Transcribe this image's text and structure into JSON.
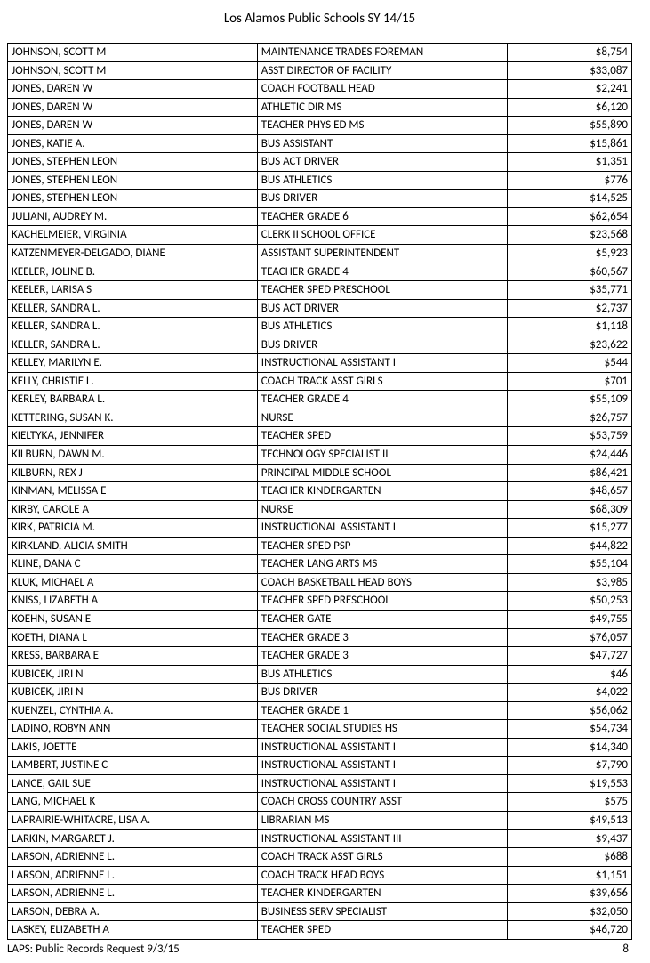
{
  "document": {
    "title": "Los Alamos Public Schools SY 14/15",
    "footer_left": "LAPS: Public Records Request 9/3/15",
    "page_number": "8"
  },
  "table": {
    "columns": [
      "name",
      "position",
      "salary"
    ],
    "col_widths_pct": [
      40,
      40,
      20
    ],
    "col_align": [
      "left",
      "left",
      "right"
    ],
    "border_color": "#000000",
    "text_color": "#000000",
    "font_size_pt": 10,
    "rows": [
      [
        "JOHNSON, SCOTT M",
        "MAINTENANCE TRADES FOREMAN",
        "$8,754"
      ],
      [
        "JOHNSON, SCOTT M",
        "ASST DIRECTOR OF FACILITY",
        "$33,087"
      ],
      [
        "JONES, DAREN W",
        "COACH FOOTBALL HEAD",
        "$2,241"
      ],
      [
        "JONES, DAREN W",
        "ATHLETIC DIR MS",
        "$6,120"
      ],
      [
        "JONES, DAREN W",
        "TEACHER PHYS ED MS",
        "$55,890"
      ],
      [
        "JONES, KATIE A.",
        "BUS ASSISTANT",
        "$15,861"
      ],
      [
        "JONES, STEPHEN LEON",
        "BUS ACT DRIVER",
        "$1,351"
      ],
      [
        "JONES, STEPHEN LEON",
        "BUS ATHLETICS",
        "$776"
      ],
      [
        "JONES, STEPHEN LEON",
        "BUS DRIVER",
        "$14,525"
      ],
      [
        "JULIANI, AUDREY M.",
        "TEACHER GRADE 6",
        "$62,654"
      ],
      [
        "KACHELMEIER, VIRGINIA",
        "CLERK II SCHOOL OFFICE",
        "$23,568"
      ],
      [
        "KATZENMEYER-DELGADO, DIANE",
        "ASSISTANT SUPERINTENDENT",
        "$5,923"
      ],
      [
        "KEELER, JOLINE B.",
        "TEACHER GRADE 4",
        "$60,567"
      ],
      [
        "KEELER, LARISA S",
        "TEACHER SPED PRESCHOOL",
        "$35,771"
      ],
      [
        "KELLER, SANDRA L.",
        "BUS ACT DRIVER",
        "$2,737"
      ],
      [
        "KELLER, SANDRA L.",
        "BUS ATHLETICS",
        "$1,118"
      ],
      [
        "KELLER, SANDRA L.",
        "BUS DRIVER",
        "$23,622"
      ],
      [
        "KELLEY, MARILYN E.",
        "INSTRUCTIONAL ASSISTANT I",
        "$544"
      ],
      [
        "KELLY, CHRISTIE L.",
        "COACH TRACK ASST GIRLS",
        "$701"
      ],
      [
        "KERLEY, BARBARA L.",
        "TEACHER GRADE 4",
        "$55,109"
      ],
      [
        "KETTERING, SUSAN K.",
        "NURSE",
        "$26,757"
      ],
      [
        "KIELTYKA, JENNIFER",
        "TEACHER SPED",
        "$53,759"
      ],
      [
        "KILBURN, DAWN M.",
        "TECHNOLOGY SPECIALIST II",
        "$24,446"
      ],
      [
        "KILBURN, REX J",
        "PRINCIPAL MIDDLE SCHOOL",
        "$86,421"
      ],
      [
        "KINMAN, MELISSA E",
        "TEACHER KINDERGARTEN",
        "$48,657"
      ],
      [
        "KIRBY, CAROLE A",
        "NURSE",
        "$68,309"
      ],
      [
        "KIRK, PATRICIA M.",
        "INSTRUCTIONAL ASSISTANT I",
        "$15,277"
      ],
      [
        "KIRKLAND, ALICIA SMITH",
        "TEACHER SPED PSP",
        "$44,822"
      ],
      [
        "KLINE, DANA C",
        "TEACHER LANG ARTS MS",
        "$55,104"
      ],
      [
        "KLUK, MICHAEL A",
        "COACH BASKETBALL HEAD BOYS",
        "$3,985"
      ],
      [
        "KNISS, LIZABETH A",
        "TEACHER SPED PRESCHOOL",
        "$50,253"
      ],
      [
        "KOEHN, SUSAN E",
        "TEACHER GATE",
        "$49,755"
      ],
      [
        "KOETH, DIANA L",
        "TEACHER GRADE 3",
        "$76,057"
      ],
      [
        "KRESS, BARBARA E",
        "TEACHER GRADE 3",
        "$47,727"
      ],
      [
        "KUBICEK, JIRI N",
        "BUS ATHLETICS",
        "$46"
      ],
      [
        "KUBICEK, JIRI N",
        "BUS DRIVER",
        "$4,022"
      ],
      [
        "KUENZEL, CYNTHIA A.",
        "TEACHER GRADE 1",
        "$56,062"
      ],
      [
        "LADINO, ROBYN ANN",
        "TEACHER SOCIAL STUDIES HS",
        "$54,734"
      ],
      [
        "LAKIS, JOETTE",
        "INSTRUCTIONAL ASSISTANT I",
        "$14,340"
      ],
      [
        "LAMBERT, JUSTINE C",
        "INSTRUCTIONAL ASSISTANT I",
        "$7,790"
      ],
      [
        "LANCE, GAIL SUE",
        "INSTRUCTIONAL ASSISTANT I",
        "$19,553"
      ],
      [
        "LANG, MICHAEL K",
        "COACH CROSS COUNTRY ASST",
        "$575"
      ],
      [
        "LAPRAIRIE-WHITACRE, LISA A.",
        "LIBRARIAN MS",
        "$49,513"
      ],
      [
        "LARKIN, MARGARET J.",
        "INSTRUCTIONAL ASSISTANT III",
        "$9,437"
      ],
      [
        "LARSON, ADRIENNE L.",
        "COACH TRACK ASST GIRLS",
        "$688"
      ],
      [
        "LARSON, ADRIENNE L.",
        "COACH TRACK HEAD BOYS",
        "$1,151"
      ],
      [
        "LARSON, ADRIENNE L.",
        "TEACHER KINDERGARTEN",
        "$39,656"
      ],
      [
        "LARSON, DEBRA A.",
        "BUSINESS SERV SPECIALIST",
        "$32,050"
      ],
      [
        "LASKEY, ELIZABETH A",
        "TEACHER SPED",
        "$46,720"
      ]
    ]
  }
}
